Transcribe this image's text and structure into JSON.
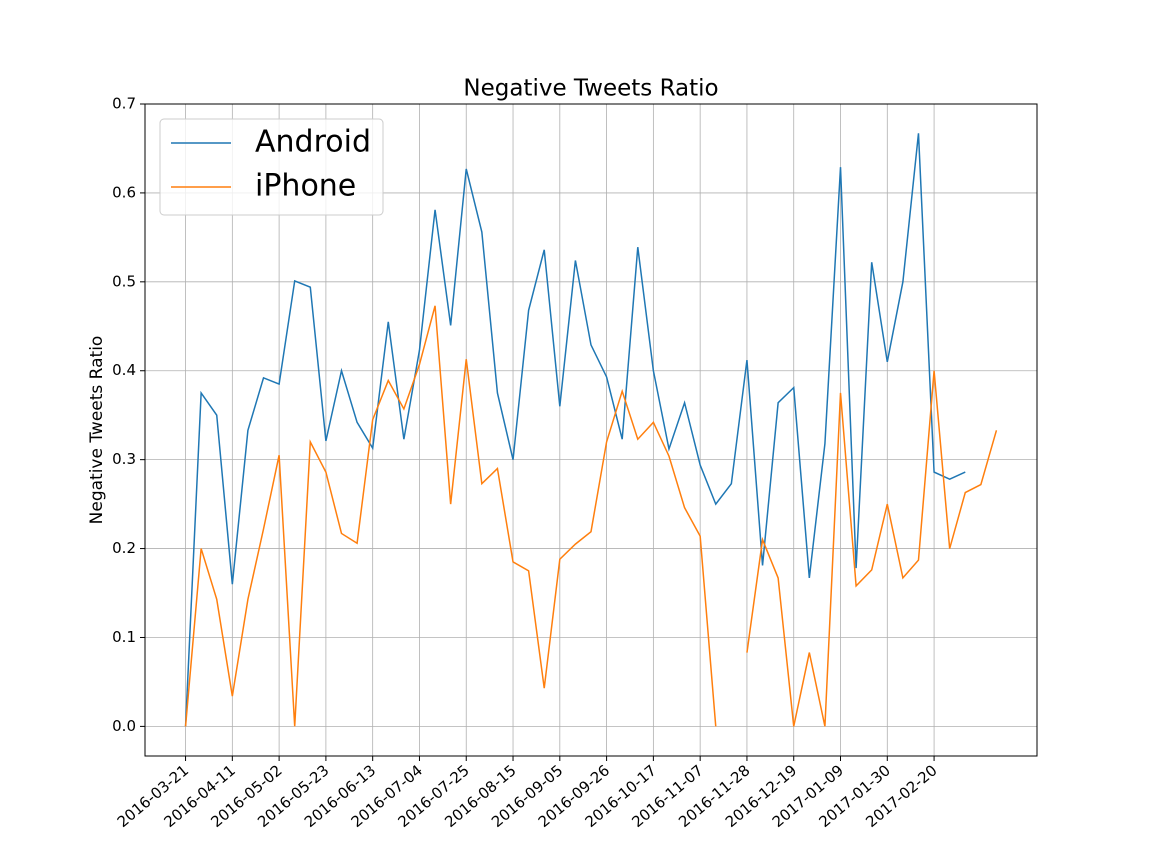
{
  "chart_data": {
    "type": "line",
    "title": "Negative Tweets Ratio",
    "ylabel": "Negative Tweets Ratio",
    "categories": [
      "2016-03-21",
      null,
      null,
      "2016-04-11",
      null,
      null,
      "2016-05-02",
      null,
      null,
      "2016-05-23",
      null,
      null,
      "2016-06-13",
      null,
      null,
      "2016-07-04",
      null,
      null,
      "2016-07-25",
      null,
      null,
      "2016-08-15",
      null,
      null,
      "2016-09-05",
      null,
      null,
      "2016-09-26",
      null,
      null,
      "2016-10-17",
      null,
      null,
      "2016-11-07",
      null,
      null,
      "2016-11-28",
      null,
      null,
      "2016-12-19",
      null,
      null,
      "2017-01-09",
      null,
      null,
      "2017-01-30",
      null,
      null,
      "2017-02-20",
      null,
      null,
      null,
      null
    ],
    "series": [
      {
        "name": "Android",
        "color": "#1f77b4",
        "values": [
          0.0,
          0.375,
          0.35,
          0.16,
          0.333,
          0.392,
          0.385,
          0.501,
          0.494,
          0.321,
          0.4,
          0.342,
          0.313,
          0.455,
          0.323,
          0.423,
          0.581,
          0.451,
          0.627,
          0.556,
          0.375,
          0.3,
          0.468,
          0.536,
          0.36,
          0.524,
          0.429,
          0.393,
          0.323,
          0.539,
          0.4,
          0.312,
          0.364,
          0.294,
          0.25,
          0.273,
          0.412,
          0.181,
          0.364,
          0.381,
          0.167,
          0.318,
          0.629,
          0.178,
          0.522,
          0.41,
          0.5,
          0.667,
          0.286,
          0.278,
          0.286,
          null,
          null
        ]
      },
      {
        "name": "iPhone",
        "color": "#ff7f0e",
        "values": [
          0.0,
          0.2,
          0.143,
          0.034,
          0.143,
          0.222,
          0.305,
          0.0,
          0.32,
          0.286,
          0.217,
          0.206,
          0.345,
          0.389,
          0.357,
          0.407,
          0.473,
          0.25,
          0.413,
          0.273,
          0.29,
          0.185,
          0.175,
          0.043,
          0.188,
          0.205,
          0.219,
          0.32,
          0.377,
          0.323,
          0.342,
          0.304,
          0.246,
          0.214,
          0.0,
          null,
          0.083,
          0.21,
          0.167,
          0.0,
          0.083,
          0.0,
          0.375,
          0.158,
          0.176,
          0.25,
          0.167,
          0.187,
          0.4,
          0.2,
          0.263,
          0.272,
          0.333
        ]
      }
    ],
    "ylim": [
      -0.0333,
      0.7
    ],
    "yticks": [
      {
        "value": 0,
        "label": "0.0"
      },
      0.1,
      0.2,
      0.3,
      0.4,
      0.5,
      0.6,
      0.7
    ],
    "grid": true,
    "legend": "upper left"
  }
}
